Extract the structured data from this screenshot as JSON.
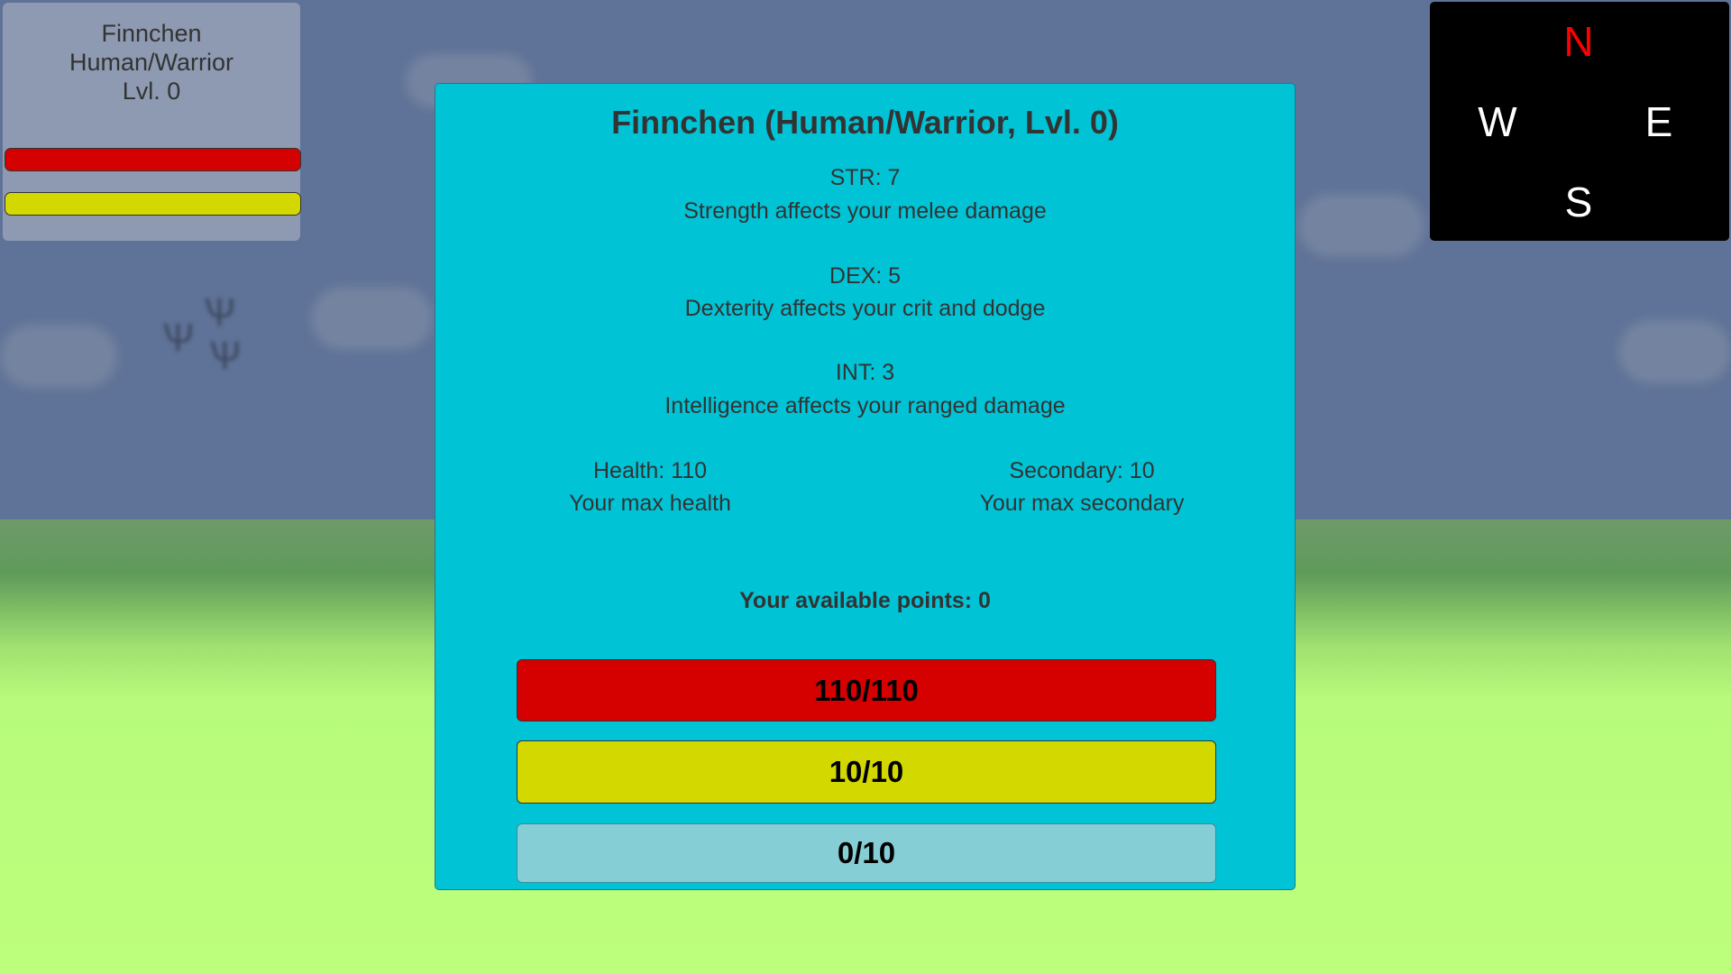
{
  "hud": {
    "name": "Finnchen",
    "class": "Human/Warrior",
    "level": "Lvl. 0",
    "health_fill": 1.0,
    "secondary_fill": 1.0
  },
  "panel": {
    "title": "Finnchen (Human/Warrior, Lvl. 0)",
    "stats": [
      {
        "label": "STR: 7",
        "desc": "Strength affects your melee damage"
      },
      {
        "label": "DEX: 5",
        "desc": "Dexterity affects your crit and dodge"
      },
      {
        "label": "INT: 3",
        "desc": "Intelligence affects your ranged damage"
      }
    ],
    "health": {
      "label": "Health: 110",
      "desc": "Your max health"
    },
    "secondary": {
      "label": "Secondary: 10",
      "desc": "Your max secondary"
    },
    "points": "Your available points: 0",
    "bars": [
      {
        "text": "110/110",
        "color": "#d50000"
      },
      {
        "text": "10/10",
        "color": "#d3d800"
      },
      {
        "text": "0/10",
        "color": "#86ced6"
      }
    ]
  },
  "compass": {
    "n": "N",
    "w": "W",
    "e": "E",
    "s": "S",
    "north_color": "#ff0000"
  },
  "colors": {
    "panel": "#00c3d6",
    "sky": "#5f7297",
    "ground": "#bcff7c"
  }
}
